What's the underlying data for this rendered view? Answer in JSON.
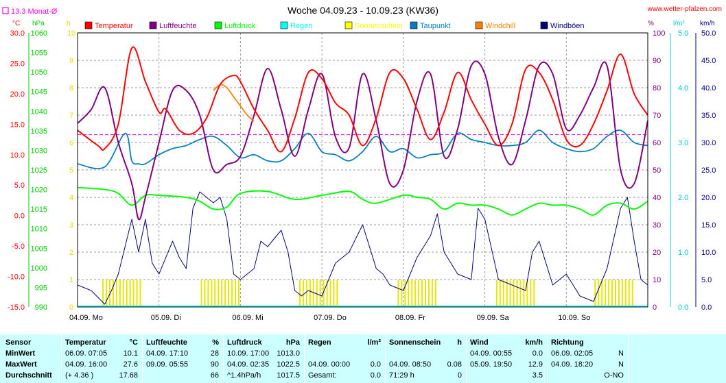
{
  "header": {
    "title": "Woche 04.09.23 - 10.09.23 (KW36)",
    "site": "www.wetter-pfalzen.com",
    "avg_label": "13.3 Monat-Ø"
  },
  "legend": [
    {
      "label": "Temperatur",
      "color": "#ff0000"
    },
    {
      "label": "Luftfeuchte",
      "color": "#800080"
    },
    {
      "label": "Luftdruck",
      "color": "#00ff00"
    },
    {
      "label": "Regen",
      "color": "#00ffff"
    },
    {
      "label": "Sonnenschein",
      "color": "#ffff00"
    },
    {
      "label": "Taupunkt",
      "color": "#0080c0"
    },
    {
      "label": "Windchill",
      "color": "#ff8000"
    },
    {
      "label": "Windböen",
      "color": "#000080"
    }
  ],
  "chart_data": {
    "type": "line",
    "title": "Woche 04.09.23 - 10.09.23 (KW36)",
    "x_categories": [
      "04.09. Mo",
      "05.09. Di",
      "06.09. Mi",
      "07.09. Do",
      "08.09. Fr",
      "09.09. Sa",
      "10.09. So"
    ],
    "x_range_hours": [
      0,
      168
    ],
    "axes": {
      "temperature": {
        "unit": "°C",
        "range": [
          -15,
          30
        ],
        "color": "#ff0000",
        "ticks": [
          "30.0",
          "25.0",
          "20.0",
          "15.0",
          "10.0",
          "5.0",
          "0.0",
          "-5.0",
          "-10.0",
          "-15.0"
        ]
      },
      "pressure": {
        "unit": "hPa",
        "range": [
          990,
          1060
        ],
        "color": "#00cc00",
        "ticks": [
          "1060",
          "1055",
          "1050",
          "1045",
          "1040",
          "1035",
          "1030",
          "1025",
          "1020",
          "1015",
          "1010",
          "1005",
          "1000",
          "995",
          "990"
        ]
      },
      "sunshine": {
        "unit": "h",
        "range": [
          0,
          10
        ],
        "color": "#e0e000",
        "ticks": [
          "10",
          "9",
          "8",
          "7",
          "6",
          "5",
          "4",
          "3",
          "2",
          "1",
          "0"
        ]
      },
      "humidity": {
        "unit": "%",
        "range": [
          0,
          100
        ],
        "color": "#800080",
        "ticks": [
          "100",
          "90",
          "80",
          "70",
          "60",
          "50",
          "40",
          "30",
          "20",
          "10",
          "0"
        ]
      },
      "rain": {
        "unit": "l/m²",
        "range": [
          0,
          5
        ],
        "color": "#00ffff",
        "ticks": [
          "5.0",
          "4.0",
          "3.0",
          "2.0",
          "1.0",
          "0.0"
        ]
      },
      "wind": {
        "unit": "km/h",
        "range": [
          0,
          50
        ],
        "color": "#000080",
        "ticks": [
          "50.0",
          "45.0",
          "40.0",
          "35.0",
          "30.0",
          "25.0",
          "20.0",
          "15.0",
          "10.0",
          "5.0",
          "0.0"
        ]
      }
    },
    "monthly_avg_temperature": 13.3,
    "grid": true,
    "series": [
      {
        "name": "Temperatur",
        "axis": "temperature",
        "color": "#ff0000",
        "x": [
          0,
          6,
          8,
          12,
          16,
          20,
          24,
          26,
          30,
          34,
          38,
          42,
          46,
          48,
          52,
          56,
          60,
          64,
          68,
          72,
          76,
          80,
          84,
          88,
          92,
          96,
          100,
          104,
          108,
          112,
          116,
          120,
          124,
          128,
          132,
          136,
          140,
          144,
          148,
          152,
          156,
          160,
          164,
          168
        ],
        "y": [
          14,
          11.5,
          11,
          15,
          27.5,
          22,
          17,
          17.5,
          14,
          13.5,
          16,
          21.5,
          23,
          22,
          17.5,
          14,
          10.5,
          16,
          23.5,
          22.5,
          18.5,
          16.5,
          11.5,
          16,
          23.5,
          22.5,
          17.5,
          12.5,
          17,
          23.5,
          19,
          15,
          11.5,
          15,
          24,
          23.5,
          19,
          12.5,
          11.5,
          15,
          20.5,
          26.5,
          20,
          16.5
        ]
      },
      {
        "name": "Luftfeuchte",
        "axis": "humidity",
        "color": "#800080",
        "x": [
          0,
          4,
          8,
          12,
          16,
          18,
          20,
          24,
          28,
          32,
          36,
          40,
          44,
          48,
          52,
          56,
          60,
          64,
          68,
          72,
          76,
          80,
          84,
          88,
          92,
          96,
          100,
          104,
          108,
          112,
          116,
          120,
          124,
          128,
          132,
          136,
          140,
          144,
          148,
          152,
          156,
          160,
          164,
          168
        ],
        "y": [
          67,
          72,
          80,
          60,
          45,
          32,
          40,
          60,
          79,
          79,
          70,
          50,
          52,
          55,
          70,
          87,
          72,
          55,
          72,
          85,
          62,
          58,
          85,
          68,
          45,
          50,
          75,
          85,
          55,
          65,
          88,
          85,
          62,
          52,
          68,
          88,
          85,
          65,
          70,
          80,
          88,
          50,
          45,
          68
        ]
      },
      {
        "name": "Luftdruck",
        "axis": "pressure",
        "color": "#00ff00",
        "x": [
          0,
          8,
          12,
          16,
          20,
          24,
          32,
          36,
          40,
          44,
          48,
          56,
          64,
          72,
          80,
          84,
          88,
          96,
          100,
          104,
          108,
          112,
          116,
          120,
          124,
          128,
          132,
          136,
          140,
          144,
          148,
          152,
          156,
          160,
          164,
          168
        ],
        "y": [
          1020.5,
          1020,
          1019,
          1016,
          1018.5,
          1018.5,
          1018,
          1017,
          1015,
          1015.5,
          1019,
          1019.5,
          1017.5,
          1018.5,
          1019.5,
          1017.5,
          1016.5,
          1018.5,
          1018,
          1017.5,
          1015,
          1016.5,
          1016,
          1016,
          1015,
          1013.5,
          1015,
          1016.5,
          1016,
          1016,
          1015,
          1013.5,
          1016,
          1016.5,
          1015,
          1017
        ]
      },
      {
        "name": "Windchill",
        "axis": "temperature",
        "color": "#ff8000",
        "x": [
          40,
          42,
          44,
          46,
          48,
          50,
          52
        ],
        "y": [
          20.5,
          21.5,
          21,
          19.5,
          18,
          16.5,
          15.5
        ]
      },
      {
        "name": "Taupunkt",
        "axis": "temperature",
        "color": "#0080c0",
        "x": [
          0,
          8,
          14,
          16,
          18,
          20,
          24,
          28,
          32,
          36,
          40,
          44,
          48,
          52,
          56,
          60,
          64,
          68,
          72,
          76,
          80,
          84,
          88,
          92,
          96,
          100,
          104,
          108,
          112,
          116,
          120,
          124,
          128,
          132,
          136,
          140,
          144,
          148,
          152,
          156,
          160,
          164,
          168
        ],
        "y": [
          8.5,
          8,
          13.5,
          9,
          8.5,
          8.5,
          10,
          11,
          11.5,
          12.5,
          13,
          11.5,
          9.5,
          10,
          9,
          9,
          11,
          13.5,
          10.5,
          10,
          9,
          10.5,
          13,
          10.5,
          11,
          9.5,
          10,
          10.5,
          13.5,
          12.5,
          12,
          11.5,
          11.5,
          12,
          14,
          12,
          11,
          10.5,
          11,
          13,
          14,
          12,
          11.5
        ]
      },
      {
        "name": "Windböen",
        "axis": "wind",
        "color": "#000080",
        "x": [
          0,
          4,
          8,
          10,
          12,
          16,
          18,
          20,
          22,
          24,
          28,
          30,
          32,
          34,
          36,
          40,
          42,
          44,
          46,
          48,
          52,
          54,
          56,
          60,
          62,
          64,
          66,
          68,
          72,
          76,
          80,
          84,
          88,
          90,
          92,
          96,
          100,
          104,
          106,
          108,
          112,
          116,
          118,
          120,
          124,
          128,
          132,
          134,
          136,
          140,
          144,
          148,
          152,
          156,
          160,
          162,
          164,
          166,
          168
        ],
        "y": [
          4,
          3,
          0.5,
          3,
          6,
          16,
          10,
          16,
          8,
          6,
          12,
          9,
          7,
          18,
          21,
          19,
          20,
          16,
          6,
          5,
          7,
          12,
          11,
          14,
          10,
          3,
          2,
          3,
          2,
          8,
          10,
          15,
          7,
          6,
          4,
          3,
          9,
          13,
          17,
          10,
          6,
          5,
          18,
          16,
          5,
          4,
          3,
          10,
          12,
          4,
          6,
          2,
          1,
          7,
          18,
          20,
          12,
          5,
          4
        ]
      }
    ],
    "sunshine": {
      "name": "Sonnenschein",
      "axis": "sunshine",
      "color": "#ffff00",
      "bars": [
        [
          7.5,
          19,
          1
        ],
        [
          36.5,
          48,
          1
        ],
        [
          65.5,
          77,
          1
        ],
        [
          94.5,
          106,
          1
        ],
        [
          123.5,
          135,
          1
        ],
        [
          152.5,
          164,
          1
        ]
      ]
    },
    "rain_total": 0.0
  },
  "table": {
    "labels": {
      "sensor": "Sensor",
      "min": "MinWert",
      "max": "MaxWert",
      "avg": "Durchschnitt"
    },
    "temperature": {
      "header": "Temperatur",
      "unit": "°C",
      "min_time": "06.09.  07:05",
      "min_value": "10.1",
      "max_time": "04.09.  16:00",
      "max_value": "27.6",
      "avg_note": "(+ 4.36 )",
      "avg_value": "17.68"
    },
    "humidity": {
      "header": "Luftfeuchte",
      "unit": "%",
      "min_time": "04.09.  17:10",
      "min_value": "28",
      "max_time": "09.09.  05:55",
      "max_value": "90",
      "avg_value": "66"
    },
    "pressure": {
      "header": "Luftdruck",
      "unit": "hPa",
      "min_time": "10.09.  17:00",
      "min_value": "1013.0",
      "max_time": "04.09.  02:35",
      "max_value": "1022.5",
      "avg_note": "^1.4hPa/h",
      "avg_value": "1017.5"
    },
    "rain": {
      "header": "Regen",
      "unit": "l/m²",
      "max_time": "04.09.  00:00",
      "max_value": "0.0",
      "avg_note": "Gesamt:",
      "avg_value": "0.0"
    },
    "sunshine": {
      "header": "Sonnenschein",
      "unit": "h",
      "max_time": "04.09.  08:50",
      "max_value": "0.08",
      "avg_note": "71:29 h",
      "avg_value": "0"
    },
    "wind": {
      "header": "Wind",
      "unit": "km/h",
      "min_time": "04.09.  00:55",
      "min_value": "0.0",
      "max_time": "05.09.  19:50",
      "max_value": "12.9",
      "avg_value": "3.5"
    },
    "direction": {
      "header": "Richtung",
      "min_time": "06.09.  02:05",
      "min_value": "N",
      "max_time": "04.09.  18:20",
      "max_value": "N",
      "avg_value": "O-NO"
    }
  }
}
